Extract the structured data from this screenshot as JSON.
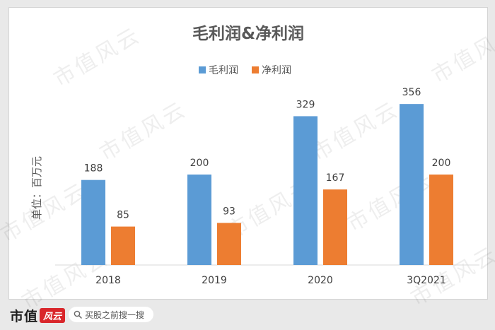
{
  "chart_data": {
    "type": "bar",
    "title": "毛利润&净利润",
    "ylabel": "单位：百万元",
    "categories": [
      "2018",
      "2019",
      "2020",
      "3Q2021"
    ],
    "series": [
      {
        "name": "毛利润",
        "values": [
          188,
          200,
          329,
          356
        ],
        "color": "#5b9bd5"
      },
      {
        "name": "净利润",
        "values": [
          85,
          93,
          167,
          200
        ],
        "color": "#ed7d31"
      }
    ],
    "ylim": [
      0,
      400
    ],
    "grid": false,
    "legend_position": "top"
  },
  "watermark": "市值风云",
  "footer": {
    "brand": "市值",
    "brand_badge": "风云",
    "search_placeholder": "买股之前搜一搜"
  }
}
